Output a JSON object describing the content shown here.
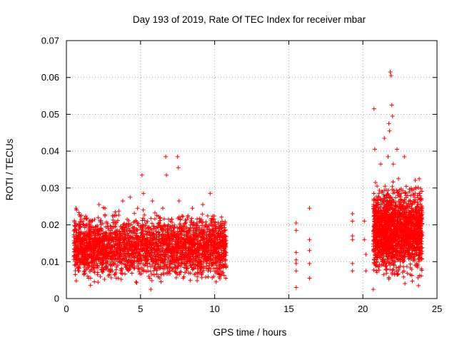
{
  "chart_data": {
    "type": "scatter",
    "title": "Day 193 of 2019, Rate Of TEC Index for receiver mbar",
    "xlabel": "GPS time / hours",
    "ylabel": "ROTI / TECUs",
    "xlim": [
      0,
      25
    ],
    "ylim": [
      0,
      0.07
    ],
    "xticks": [
      0,
      5,
      10,
      15,
      20,
      25
    ],
    "xtick_labels": [
      "0",
      "5",
      "10",
      "15",
      "20",
      "25"
    ],
    "yticks": [
      0,
      0.01,
      0.02,
      0.03,
      0.04,
      0.05,
      0.06,
      0.07
    ],
    "ytick_labels": [
      "0",
      "0.01",
      "0.02",
      "0.03",
      "0.04",
      "0.05",
      "0.06",
      "0.07"
    ],
    "grid": true,
    "marker": "+",
    "color": "#ff0000",
    "series": [
      {
        "name": "ROTI",
        "points": [
          [
            0.6,
            0.0065
          ],
          [
            0.65,
            0.0245
          ],
          [
            0.7,
            0.0185
          ],
          [
            0.75,
            0.0095
          ],
          [
            0.8,
            0.0125
          ],
          [
            0.85,
            0.0075
          ],
          [
            0.9,
            0.0155
          ],
          [
            1.0,
            0.0105
          ],
          [
            1.1,
            0.0135
          ],
          [
            1.2,
            0.0085
          ],
          [
            1.3,
            0.016
          ],
          [
            1.4,
            0.011
          ],
          [
            1.5,
            0.0055
          ],
          [
            1.6,
            0.0195
          ],
          [
            1.7,
            0.0125
          ],
          [
            1.8,
            0.0095
          ],
          [
            1.9,
            0.0215
          ],
          [
            2.0,
            0.0145
          ],
          [
            2.1,
            0.0065
          ],
          [
            2.2,
            0.0255
          ],
          [
            2.3,
            0.0175
          ],
          [
            2.4,
            0.0105
          ],
          [
            2.5,
            0.0135
          ],
          [
            2.6,
            0.0245
          ],
          [
            2.7,
            0.0085
          ],
          [
            2.8,
            0.016
          ],
          [
            2.9,
            0.0115
          ],
          [
            3.0,
            0.0195
          ],
          [
            3.1,
            0.0075
          ],
          [
            3.2,
            0.0125
          ],
          [
            3.3,
            0.0235
          ],
          [
            3.4,
            0.0145
          ],
          [
            3.5,
            0.0055
          ],
          [
            3.6,
            0.0175
          ],
          [
            3.7,
            0.0105
          ],
          [
            3.8,
            0.0265
          ],
          [
            3.9,
            0.0135
          ],
          [
            4.0,
            0.0085
          ],
          [
            4.1,
            0.0215
          ],
          [
            4.2,
            0.0155
          ],
          [
            4.3,
            0.0275
          ],
          [
            4.4,
            0.0095
          ],
          [
            4.5,
            0.0185
          ],
          [
            4.6,
            0.0125
          ],
          [
            4.7,
            0.0045
          ],
          [
            4.8,
            0.0245
          ],
          [
            4.9,
            0.0165
          ],
          [
            5.0,
            0.0105
          ],
          [
            5.1,
            0.0335
          ],
          [
            5.2,
            0.0285
          ],
          [
            5.3,
            0.0145
          ],
          [
            5.4,
            0.0205
          ],
          [
            5.5,
            0.0075
          ],
          [
            5.6,
            0.0125
          ],
          [
            5.7,
            0.0025
          ],
          [
            5.8,
            0.0265
          ],
          [
            5.9,
            0.0175
          ],
          [
            6.0,
            0.0095
          ],
          [
            6.1,
            0.0225
          ],
          [
            6.2,
            0.0135
          ],
          [
            6.3,
            0.0155
          ],
          [
            6.4,
            0.0065
          ],
          [
            6.5,
            0.0245
          ],
          [
            6.6,
            0.0115
          ],
          [
            6.7,
            0.0385
          ],
          [
            6.75,
            0.0335
          ],
          [
            6.8,
            0.0195
          ],
          [
            6.9,
            0.0145
          ],
          [
            7.0,
            0.0085
          ],
          [
            7.1,
            0.0215
          ],
          [
            7.2,
            0.0125
          ],
          [
            7.3,
            0.0175
          ],
          [
            7.4,
            0.0105
          ],
          [
            7.5,
            0.0385
          ],
          [
            7.55,
            0.0355
          ],
          [
            7.6,
            0.0265
          ],
          [
            7.7,
            0.0155
          ],
          [
            7.8,
            0.0095
          ],
          [
            7.9,
            0.0195
          ],
          [
            8.0,
            0.0135
          ],
          [
            8.1,
            0.0075
          ],
          [
            8.2,
            0.0225
          ],
          [
            8.3,
            0.0165
          ],
          [
            8.4,
            0.0115
          ],
          [
            8.5,
            0.0245
          ],
          [
            8.6,
            0.0145
          ],
          [
            8.7,
            0.0085
          ],
          [
            8.8,
            0.0205
          ],
          [
            8.9,
            0.0125
          ],
          [
            9.0,
            0.0175
          ],
          [
            9.1,
            0.0065
          ],
          [
            9.2,
            0.0255
          ],
          [
            9.3,
            0.0135
          ],
          [
            9.4,
            0.0105
          ],
          [
            9.5,
            0.0195
          ],
          [
            9.6,
            0.0155
          ],
          [
            9.7,
            0.0285
          ],
          [
            9.8,
            0.0095
          ],
          [
            9.9,
            0.0215
          ],
          [
            10.0,
            0.0125
          ],
          [
            10.1,
            0.0045
          ],
          [
            10.2,
            0.0175
          ],
          [
            10.3,
            0.0145
          ],
          [
            10.4,
            0.0205
          ],
          [
            10.5,
            0.0085
          ],
          [
            10.6,
            0.0115
          ],
          [
            10.7,
            0.0205
          ],
          [
            10.75,
            0.0055
          ],
          [
            15.5,
            0.0205
          ],
          [
            15.5,
            0.0185
          ],
          [
            15.5,
            0.0125
          ],
          [
            15.5,
            0.0105
          ],
          [
            15.5,
            0.0095
          ],
          [
            15.5,
            0.0075
          ],
          [
            15.5,
            0.003
          ],
          [
            16.4,
            0.0245
          ],
          [
            16.4,
            0.016
          ],
          [
            16.4,
            0.013
          ],
          [
            16.4,
            0.0095
          ],
          [
            16.4,
            0.0055
          ],
          [
            19.3,
            0.023
          ],
          [
            19.3,
            0.021
          ],
          [
            19.3,
            0.017
          ],
          [
            19.3,
            0.016
          ],
          [
            19.3,
            0.0095
          ],
          [
            19.3,
            0.0075
          ],
          [
            20.1,
            0.021
          ],
          [
            20.1,
            0.016
          ],
          [
            20.2,
            0.012
          ],
          [
            20.2,
            0.0075
          ],
          [
            20.7,
            0.0025
          ],
          [
            20.75,
            0.0515
          ],
          [
            20.8,
            0.0405
          ],
          [
            20.85,
            0.0315
          ],
          [
            20.9,
            0.0235
          ],
          [
            20.95,
            0.0165
          ],
          [
            21.0,
            0.0125
          ],
          [
            21.05,
            0.0085
          ],
          [
            21.1,
            0.0275
          ],
          [
            21.15,
            0.0195
          ],
          [
            21.2,
            0.0365
          ],
          [
            21.25,
            0.0145
          ],
          [
            21.3,
            0.0105
          ],
          [
            21.35,
            0.0225
          ],
          [
            21.4,
            0.0065
          ],
          [
            21.45,
            0.0435
          ],
          [
            21.5,
            0.0305
          ],
          [
            21.55,
            0.0175
          ],
          [
            21.6,
            0.0115
          ],
          [
            21.65,
            0.0255
          ],
          [
            21.7,
            0.0385
          ],
          [
            21.75,
            0.0475
          ],
          [
            21.8,
            0.0455
          ],
          [
            21.85,
            0.0615
          ],
          [
            21.9,
            0.0605
          ],
          [
            21.95,
            0.0525
          ],
          [
            22.0,
            0.0495
          ],
          [
            22.05,
            0.0365
          ],
          [
            22.1,
            0.0265
          ],
          [
            22.15,
            0.0195
          ],
          [
            22.2,
            0.0135
          ],
          [
            22.25,
            0.0085
          ],
          [
            22.3,
            0.0405
          ],
          [
            22.4,
            0.0325
          ],
          [
            22.5,
            0.0225
          ],
          [
            22.6,
            0.0155
          ],
          [
            22.7,
            0.0105
          ],
          [
            22.8,
            0.0385
          ],
          [
            22.9,
            0.0285
          ],
          [
            23.0,
            0.0185
          ],
          [
            23.1,
            0.0125
          ],
          [
            23.2,
            0.0065
          ],
          [
            23.3,
            0.0245
          ],
          [
            23.4,
            0.0165
          ],
          [
            23.5,
            0.0115
          ],
          [
            23.6,
            0.0205
          ],
          [
            23.7,
            0.0085
          ],
          [
            23.75,
            0.0035
          ],
          [
            23.8,
            0.0325
          ],
          [
            23.85,
            0.0285
          ],
          [
            23.9,
            0.0225
          ],
          [
            23.95,
            0.0155
          ]
        ]
      }
    ],
    "dense_bands": [
      {
        "x_range": [
          0.5,
          10.8
        ],
        "y_range": [
          0.003,
          0.024
        ],
        "density": 2600
      },
      {
        "x_range": [
          20.7,
          24.0
        ],
        "y_range": [
          0.003,
          0.032
        ],
        "density": 1700
      }
    ]
  }
}
